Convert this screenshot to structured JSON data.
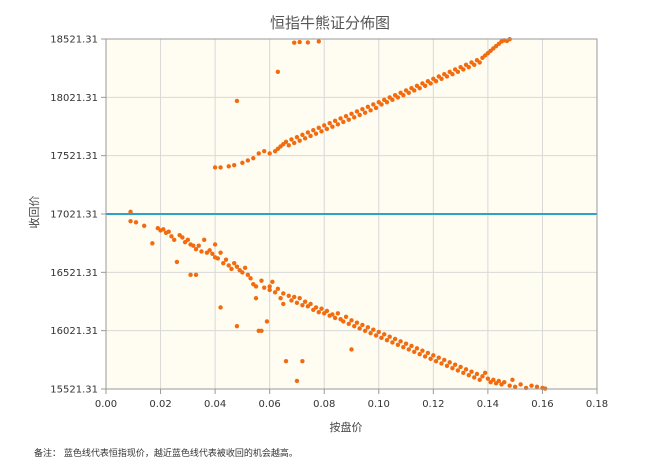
{
  "note": "备注：  蓝色线代表恒指现价，越近蓝色线代表被收回的机会越高。",
  "chart_data": {
    "type": "scatter",
    "title": "恒指牛熊证分佈图",
    "xlabel": "按盘价",
    "ylabel": "收回价",
    "xlim": [
      0,
      0.18
    ],
    "ylim": [
      15521.31,
      18521.31
    ],
    "x_ticks": [
      "0.00",
      "0.02",
      "0.04",
      "0.06",
      "0.08",
      "0.10",
      "0.12",
      "0.14",
      "0.16",
      "0.18"
    ],
    "y_ticks": [
      "15521.31",
      "16021.31",
      "16521.31",
      "17021.31",
      "17521.31",
      "18021.31",
      "18521.31"
    ],
    "grid": true,
    "reference_line": {
      "y": 17021.31,
      "color": "#2aa4c4"
    },
    "colors": {
      "points": "#f26b0f",
      "plot_background": "#fffdf2",
      "grid": "#d8d8d8"
    },
    "series": [
      {
        "points": [
          [
            0.009,
            17040
          ],
          [
            0.009,
            16960
          ],
          [
            0.011,
            16950
          ],
          [
            0.014,
            16920
          ],
          [
            0.017,
            16770
          ],
          [
            0.019,
            16900
          ],
          [
            0.02,
            16880
          ],
          [
            0.021,
            16890
          ],
          [
            0.022,
            16860
          ],
          [
            0.023,
            16870
          ],
          [
            0.024,
            16830
          ],
          [
            0.025,
            16800
          ],
          [
            0.026,
            16610
          ],
          [
            0.027,
            16840
          ],
          [
            0.028,
            16820
          ],
          [
            0.029,
            16780
          ],
          [
            0.03,
            16800
          ],
          [
            0.031,
            16760
          ],
          [
            0.031,
            16500
          ],
          [
            0.032,
            16750
          ],
          [
            0.033,
            16720
          ],
          [
            0.033,
            16500
          ],
          [
            0.034,
            16750
          ],
          [
            0.035,
            16700
          ],
          [
            0.036,
            16800
          ],
          [
            0.037,
            16690
          ],
          [
            0.038,
            16710
          ],
          [
            0.039,
            16680
          ],
          [
            0.04,
            16650
          ],
          [
            0.04,
            16760
          ],
          [
            0.041,
            16640
          ],
          [
            0.042,
            16690
          ],
          [
            0.042,
            16220
          ],
          [
            0.043,
            16600
          ],
          [
            0.044,
            16630
          ],
          [
            0.045,
            16580
          ],
          [
            0.046,
            16550
          ],
          [
            0.047,
            16600
          ],
          [
            0.048,
            16570
          ],
          [
            0.048,
            16060
          ],
          [
            0.049,
            16540
          ],
          [
            0.05,
            16520
          ],
          [
            0.051,
            16560
          ],
          [
            0.052,
            16500
          ],
          [
            0.053,
            16470
          ],
          [
            0.054,
            16420
          ],
          [
            0.055,
            16400
          ],
          [
            0.055,
            16300
          ],
          [
            0.056,
            16020
          ],
          [
            0.057,
            16450
          ],
          [
            0.057,
            16020
          ],
          [
            0.058,
            16390
          ],
          [
            0.059,
            16100
          ],
          [
            0.06,
            16370
          ],
          [
            0.06,
            16400
          ],
          [
            0.061,
            16440
          ],
          [
            0.062,
            16350
          ],
          [
            0.063,
            16380
          ],
          [
            0.064,
            16300
          ],
          [
            0.065,
            16340
          ],
          [
            0.065,
            16250
          ],
          [
            0.066,
            15760
          ],
          [
            0.067,
            16320
          ],
          [
            0.068,
            16280
          ],
          [
            0.069,
            16310
          ],
          [
            0.07,
            16260
          ],
          [
            0.07,
            15590
          ],
          [
            0.071,
            16300
          ],
          [
            0.072,
            16240
          ],
          [
            0.072,
            15760
          ],
          [
            0.073,
            16270
          ],
          [
            0.074,
            16230
          ],
          [
            0.075,
            16250
          ],
          [
            0.076,
            16200
          ],
          [
            0.077,
            16220
          ],
          [
            0.078,
            16180
          ],
          [
            0.079,
            16210
          ],
          [
            0.08,
            16170
          ],
          [
            0.081,
            16190
          ],
          [
            0.082,
            16150
          ],
          [
            0.083,
            16160
          ],
          [
            0.084,
            16130
          ],
          [
            0.085,
            16170
          ],
          [
            0.086,
            16120
          ],
          [
            0.087,
            16100
          ],
          [
            0.088,
            16140
          ],
          [
            0.089,
            16080
          ],
          [
            0.09,
            16110
          ],
          [
            0.09,
            15860
          ],
          [
            0.091,
            16060
          ],
          [
            0.092,
            16090
          ],
          [
            0.093,
            16040
          ],
          [
            0.094,
            16070
          ],
          [
            0.095,
            16020
          ],
          [
            0.096,
            16050
          ],
          [
            0.097,
            16000
          ],
          [
            0.098,
            16030
          ],
          [
            0.099,
            15980
          ],
          [
            0.1,
            16010
          ],
          [
            0.101,
            15960
          ],
          [
            0.102,
            15990
          ],
          [
            0.103,
            15940
          ],
          [
            0.104,
            15970
          ],
          [
            0.105,
            15920
          ],
          [
            0.106,
            15950
          ],
          [
            0.107,
            15900
          ],
          [
            0.108,
            15930
          ],
          [
            0.109,
            15880
          ],
          [
            0.11,
            15910
          ],
          [
            0.111,
            15860
          ],
          [
            0.112,
            15890
          ],
          [
            0.113,
            15840
          ],
          [
            0.114,
            15870
          ],
          [
            0.115,
            15820
          ],
          [
            0.116,
            15850
          ],
          [
            0.117,
            15800
          ],
          [
            0.118,
            15830
          ],
          [
            0.119,
            15780
          ],
          [
            0.12,
            15810
          ],
          [
            0.121,
            15760
          ],
          [
            0.122,
            15790
          ],
          [
            0.123,
            15740
          ],
          [
            0.124,
            15770
          ],
          [
            0.125,
            15720
          ],
          [
            0.126,
            15750
          ],
          [
            0.127,
            15700
          ],
          [
            0.128,
            15730
          ],
          [
            0.129,
            15680
          ],
          [
            0.13,
            15710
          ],
          [
            0.131,
            15660
          ],
          [
            0.132,
            15690
          ],
          [
            0.133,
            15640
          ],
          [
            0.134,
            15670
          ],
          [
            0.135,
            15620
          ],
          [
            0.136,
            15650
          ],
          [
            0.137,
            15600
          ],
          [
            0.138,
            15630
          ],
          [
            0.139,
            15660
          ],
          [
            0.14,
            15610
          ],
          [
            0.141,
            15580
          ],
          [
            0.142,
            15600
          ],
          [
            0.143,
            15570
          ],
          [
            0.144,
            15590
          ],
          [
            0.145,
            15560
          ],
          [
            0.146,
            15580
          ],
          [
            0.148,
            15550
          ],
          [
            0.149,
            15600
          ],
          [
            0.15,
            15540
          ],
          [
            0.152,
            15560
          ],
          [
            0.154,
            15530
          ],
          [
            0.156,
            15550
          ],
          [
            0.158,
            15540
          ],
          [
            0.16,
            15530
          ],
          [
            0.161,
            15525
          ],
          [
            0.04,
            17420
          ],
          [
            0.042,
            17420
          ],
          [
            0.045,
            17430
          ],
          [
            0.047,
            17440
          ],
          [
            0.048,
            17990
          ],
          [
            0.05,
            17460
          ],
          [
            0.052,
            17480
          ],
          [
            0.054,
            17500
          ],
          [
            0.056,
            17540
          ],
          [
            0.058,
            17560
          ],
          [
            0.06,
            17540
          ],
          [
            0.062,
            17560
          ],
          [
            0.063,
            17580
          ],
          [
            0.064,
            17600
          ],
          [
            0.065,
            17620
          ],
          [
            0.066,
            17640
          ],
          [
            0.067,
            17610
          ],
          [
            0.068,
            17660
          ],
          [
            0.069,
            17630
          ],
          [
            0.07,
            17680
          ],
          [
            0.071,
            17650
          ],
          [
            0.072,
            17700
          ],
          [
            0.073,
            17670
          ],
          [
            0.074,
            17720
          ],
          [
            0.075,
            17690
          ],
          [
            0.076,
            17740
          ],
          [
            0.077,
            17710
          ],
          [
            0.078,
            17760
          ],
          [
            0.079,
            17730
          ],
          [
            0.08,
            17780
          ],
          [
            0.081,
            17750
          ],
          [
            0.082,
            17800
          ],
          [
            0.083,
            17770
          ],
          [
            0.084,
            17820
          ],
          [
            0.085,
            17790
          ],
          [
            0.086,
            17840
          ],
          [
            0.087,
            17810
          ],
          [
            0.088,
            17860
          ],
          [
            0.089,
            17830
          ],
          [
            0.09,
            17880
          ],
          [
            0.091,
            17850
          ],
          [
            0.092,
            17900
          ],
          [
            0.093,
            17870
          ],
          [
            0.094,
            17920
          ],
          [
            0.095,
            17890
          ],
          [
            0.096,
            17940
          ],
          [
            0.097,
            17910
          ],
          [
            0.098,
            17960
          ],
          [
            0.099,
            17930
          ],
          [
            0.1,
            17980
          ],
          [
            0.101,
            17960
          ],
          [
            0.102,
            18000
          ],
          [
            0.103,
            17980
          ],
          [
            0.104,
            18020
          ],
          [
            0.105,
            18000
          ],
          [
            0.106,
            18040
          ],
          [
            0.107,
            18020
          ],
          [
            0.108,
            18060
          ],
          [
            0.109,
            18040
          ],
          [
            0.11,
            18080
          ],
          [
            0.111,
            18060
          ],
          [
            0.112,
            18100
          ],
          [
            0.113,
            18080
          ],
          [
            0.114,
            18120
          ],
          [
            0.115,
            18100
          ],
          [
            0.116,
            18140
          ],
          [
            0.117,
            18120
          ],
          [
            0.118,
            18160
          ],
          [
            0.119,
            18140
          ],
          [
            0.12,
            18180
          ],
          [
            0.121,
            18160
          ],
          [
            0.122,
            18200
          ],
          [
            0.123,
            18180
          ],
          [
            0.124,
            18220
          ],
          [
            0.125,
            18200
          ],
          [
            0.126,
            18240
          ],
          [
            0.127,
            18220
          ],
          [
            0.128,
            18260
          ],
          [
            0.129,
            18240
          ],
          [
            0.13,
            18280
          ],
          [
            0.131,
            18260
          ],
          [
            0.132,
            18300
          ],
          [
            0.133,
            18280
          ],
          [
            0.134,
            18320
          ],
          [
            0.135,
            18300
          ],
          [
            0.136,
            18340
          ],
          [
            0.137,
            18320
          ],
          [
            0.138,
            18360
          ],
          [
            0.139,
            18380
          ],
          [
            0.14,
            18400
          ],
          [
            0.141,
            18420
          ],
          [
            0.142,
            18440
          ],
          [
            0.143,
            18460
          ],
          [
            0.144,
            18480
          ],
          [
            0.145,
            18500
          ],
          [
            0.146,
            18510
          ],
          [
            0.147,
            18505
          ],
          [
            0.148,
            18520
          ],
          [
            0.063,
            18240
          ],
          [
            0.069,
            18490
          ],
          [
            0.071,
            18495
          ],
          [
            0.074,
            18492
          ],
          [
            0.078,
            18500
          ]
        ]
      }
    ]
  }
}
